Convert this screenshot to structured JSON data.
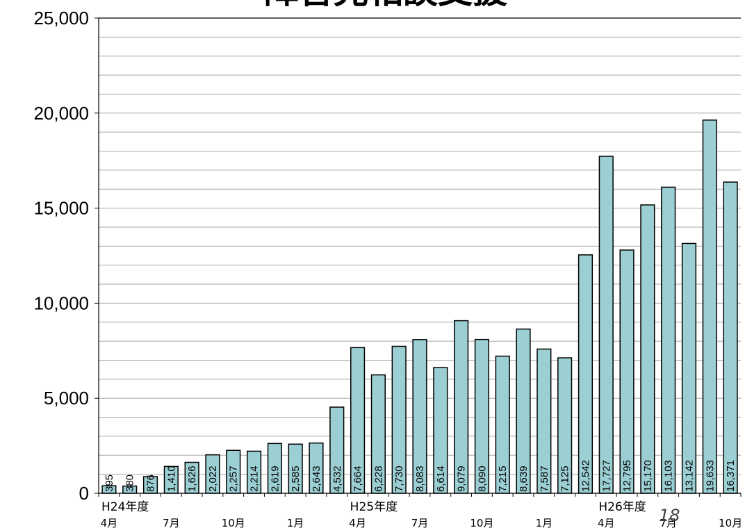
{
  "chart_data": {
    "type": "bar",
    "title": "障害児相談支援",
    "ylim": [
      0,
      25000
    ],
    "y_ticks": [
      "0",
      "5,000",
      "10,000",
      "15,000",
      "20,000",
      "25,000"
    ],
    "grid": true,
    "colors": {
      "bar_fill": "#9ccfd3",
      "bar_stroke": "#000000",
      "grid": "#a6a6a6"
    },
    "values": [
      395,
      380,
      876,
      1410,
      1626,
      2022,
      2257,
      2214,
      2619,
      2585,
      2643,
      4532,
      7664,
      6228,
      7730,
      8083,
      6614,
      9079,
      8090,
      7215,
      8639,
      7587,
      7125,
      12542,
      17727,
      12795,
      15170,
      16103,
      13142,
      19633,
      16371
    ],
    "data_labels": [
      "395",
      "380",
      "876",
      "1,410",
      "1,626",
      "2,022",
      "2,257",
      "2,214",
      "2,619",
      "2,585",
      "2,643",
      "4,532",
      "7,664",
      "6,228",
      "7,730",
      "8,083",
      "6,614",
      "9,079",
      "8,090",
      "7,215",
      "8,639",
      "7,587",
      "7,125",
      "12,542",
      "17,727",
      "12,795",
      "15,170",
      "16,103",
      "13,142",
      "19,633",
      "16,371"
    ],
    "year_labels": [
      {
        "label": "H24年度",
        "index": 0
      },
      {
        "label": "H25年度",
        "index": 12
      },
      {
        "label": "H26年度",
        "index": 24
      }
    ],
    "month_labels": [
      {
        "label": "4月",
        "index": 0
      },
      {
        "label": "7月",
        "index": 3
      },
      {
        "label": "10月",
        "index": 6
      },
      {
        "label": "1月",
        "index": 9
      },
      {
        "label": "4月",
        "index": 12
      },
      {
        "label": "7月",
        "index": 15
      },
      {
        "label": "10月",
        "index": 18
      },
      {
        "label": "1月",
        "index": 21
      },
      {
        "label": "4月",
        "index": 24
      },
      {
        "label": "7月",
        "index": 27
      },
      {
        "label": "10月",
        "index": 30
      }
    ]
  },
  "page_number": "18"
}
